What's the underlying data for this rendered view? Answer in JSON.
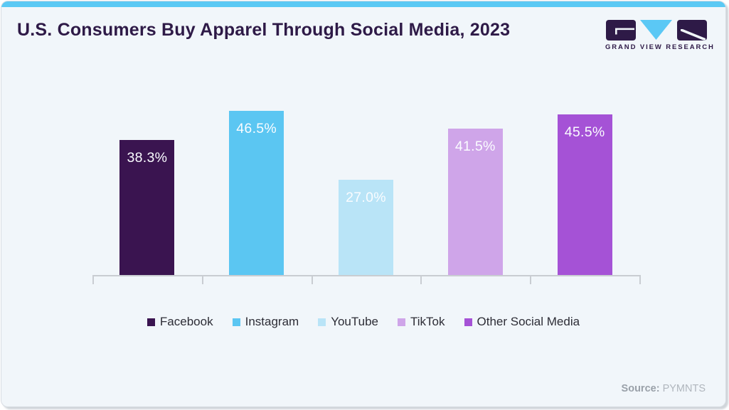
{
  "title": "U.S. Consumers Buy Apparel Through Social Media, 2023",
  "logo": {
    "brand": "GRAND VIEW RESEARCH",
    "icon": "gvr-logo-icon",
    "purple": "#2e1a47",
    "blue": "#5bc8f5"
  },
  "source": {
    "label": "Source:",
    "value": "PYMNTS"
  },
  "colors": {
    "card_background": "#f1f6fa",
    "card_border": "#d8dde3",
    "top_strip": "#5bc9f4",
    "title_text": "#2e1a47",
    "axis": "#c9cdd2",
    "bar_label_text": "#fafcff",
    "legend_text": "#2d2d36"
  },
  "chart_data": {
    "type": "bar",
    "title": "U.S. Consumers Buy Apparel Through Social Media, 2023",
    "categories": [
      "Facebook",
      "Instagram",
      "YouTube",
      "TikTok",
      "Other Social Media"
    ],
    "values": [
      38.3,
      46.5,
      27.0,
      41.5,
      45.5
    ],
    "data_labels": [
      "38.3%",
      "46.5%",
      "27.0%",
      "41.5%",
      "45.5%"
    ],
    "bar_colors": [
      "#3a1450",
      "#5bc6f2",
      "#b9e4f7",
      "#cfa5e9",
      "#a552d6"
    ],
    "xlabel": "",
    "ylabel": "",
    "ylim": [
      0,
      50
    ],
    "grid": false,
    "value_axis_visible": false,
    "legend_position": "bottom"
  }
}
